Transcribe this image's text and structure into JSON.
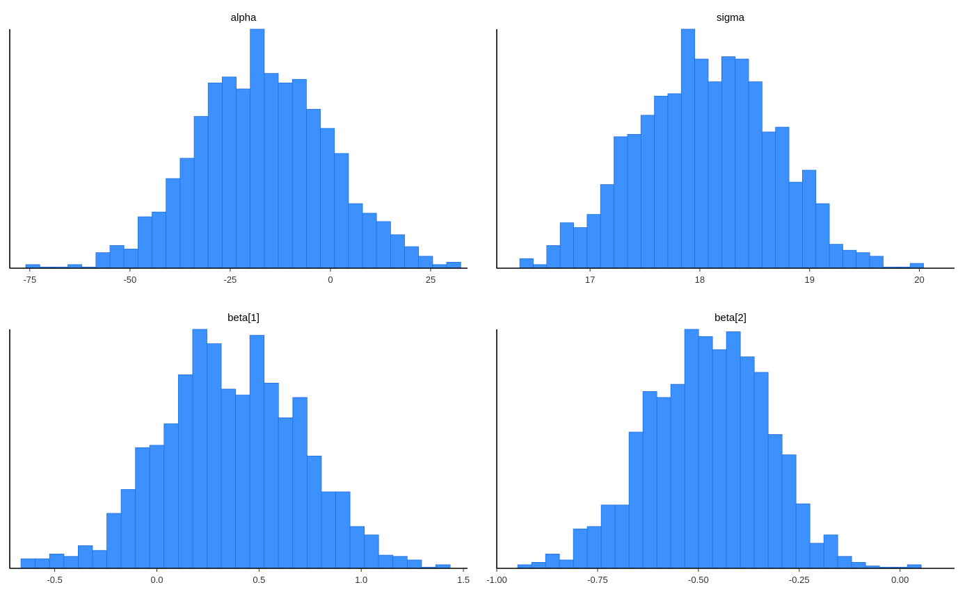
{
  "chart_data": [
    {
      "type": "bar",
      "title": "alpha",
      "xlim": [
        -80.0,
        34.2
      ],
      "bin_start": -76.0,
      "bin_width": 3.5,
      "values": [
        1.5,
        0.5,
        0.5,
        1.5,
        0.5,
        6.5,
        9.5,
        8,
        21.5,
        23.5,
        37.5,
        46,
        63.5,
        77.5,
        80,
        75,
        100,
        81.5,
        77.5,
        79,
        66.5,
        58.5,
        48,
        27,
        23,
        19.5,
        14,
        9,
        5,
        1.5,
        2.5
      ],
      "ylim": [
        0,
        100
      ],
      "ticks": [
        -75,
        -50,
        -25,
        0,
        25
      ],
      "tick_labels": [
        "-75",
        "-50",
        "-25",
        "0",
        "25"
      ]
    },
    {
      "type": "bar",
      "title": "sigma",
      "xlim": [
        16.15,
        20.32
      ],
      "bin_start": 16.36,
      "bin_width": 0.1226,
      "values": [
        4,
        1.5,
        9.5,
        19,
        17,
        22.5,
        35,
        55,
        56,
        64,
        72,
        73,
        100,
        87.5,
        78,
        88.5,
        87.5,
        78,
        57,
        59,
        36,
        41,
        27,
        10,
        7.5,
        6.5,
        5,
        0.5,
        0.5,
        2
      ],
      "ylim": [
        0,
        100
      ],
      "ticks": [
        17,
        18,
        19,
        20
      ],
      "tick_labels": [
        "17",
        "18",
        "19",
        "20"
      ]
    },
    {
      "type": "bar",
      "title": "beta[1]",
      "xlim": [
        -0.72,
        1.52
      ],
      "bin_start": -0.665,
      "bin_width": 0.07,
      "values": [
        4,
        4,
        6,
        5,
        9.5,
        7.5,
        23,
        33,
        50.5,
        51.5,
        60.5,
        81,
        100,
        94,
        75,
        72.5,
        97.5,
        77.5,
        63,
        71.5,
        47,
        32,
        32,
        17.5,
        14,
        5.5,
        5,
        3.5,
        0.5,
        1.5
      ],
      "ylim": [
        0,
        100
      ],
      "ticks": [
        -0.5,
        0.0,
        0.5,
        1.0,
        1.5
      ],
      "tick_labels": [
        "-0.5",
        "0.0",
        "0.5",
        "1.0",
        "1.5"
      ]
    },
    {
      "type": "bar",
      "title": "beta[2]",
      "xlim": [
        -1.0,
        0.135
      ],
      "bin_start": -0.948,
      "bin_width": 0.0345,
      "values": [
        1.5,
        2.5,
        6,
        3.5,
        16.5,
        17.5,
        26.5,
        26.5,
        57,
        74,
        71.5,
        77,
        100,
        97,
        91.5,
        99,
        88.5,
        82,
        56,
        47.5,
        27,
        10.5,
        14,
        5,
        2.5,
        1,
        0.5,
        0.5,
        1.5
      ],
      "ylim": [
        0,
        100
      ],
      "ticks": [
        -1.0,
        -0.75,
        -0.5,
        -0.25,
        0.0
      ],
      "tick_labels": [
        "-1.00",
        "-0.75",
        "-0.50",
        "-0.25",
        "0.00"
      ]
    }
  ]
}
